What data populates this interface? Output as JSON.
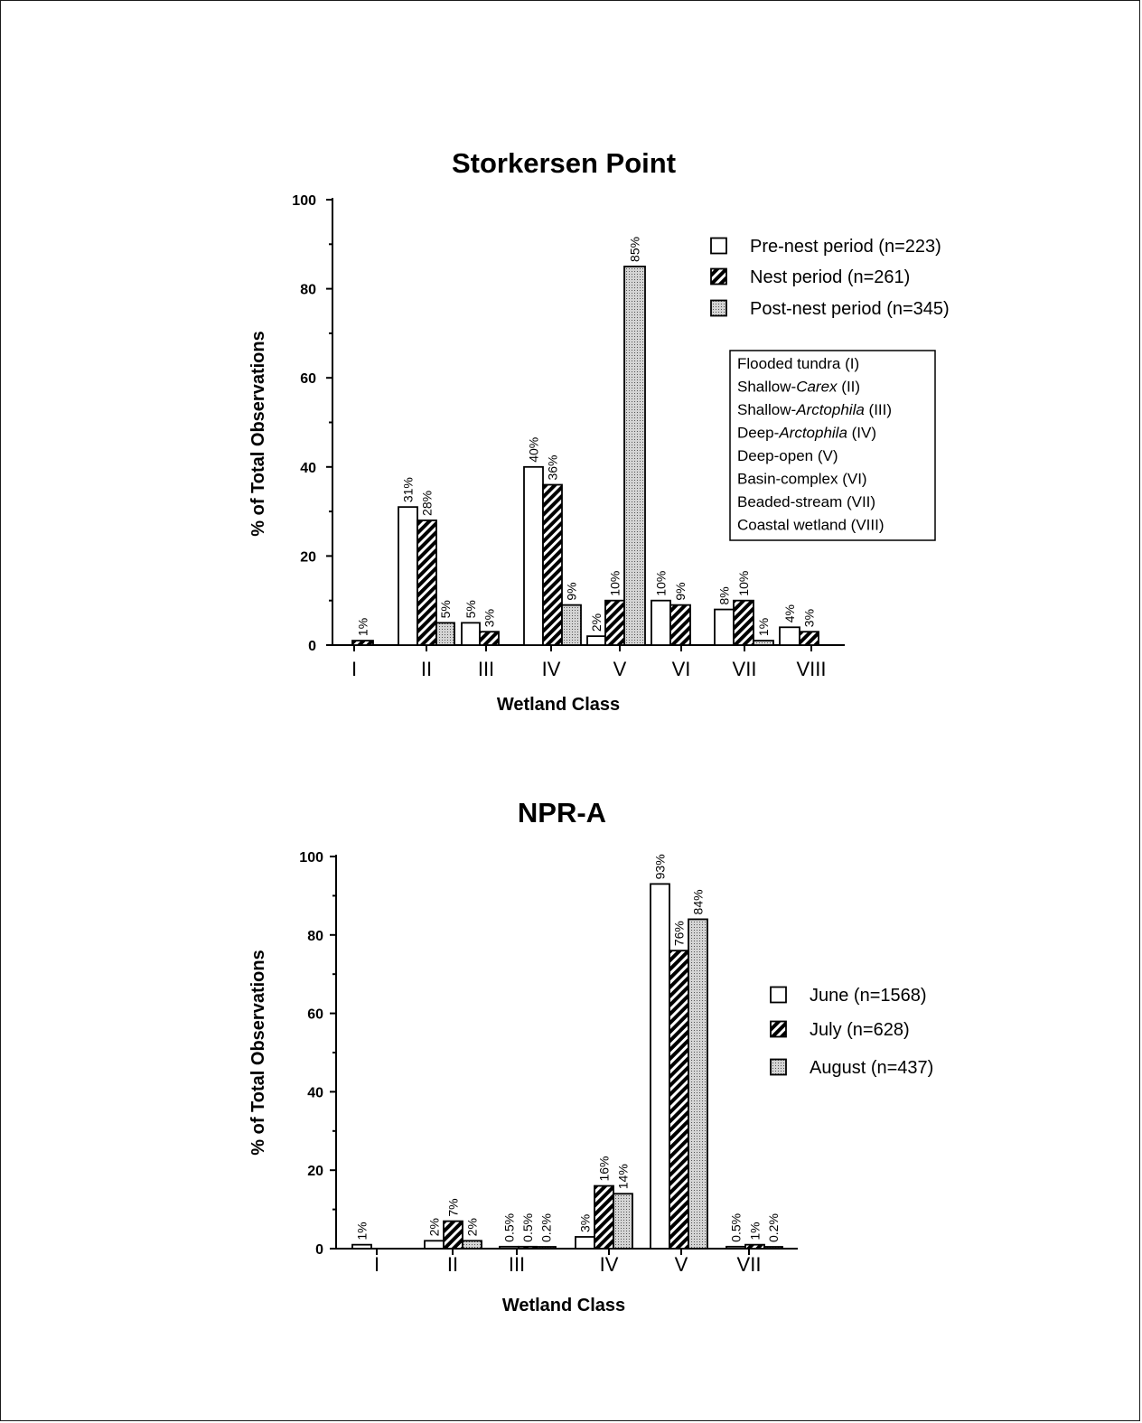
{
  "chart_data": [
    {
      "type": "bar",
      "title": "Storkersen Point",
      "xlabel": "Wetland Class",
      "ylabel": "% of Total Observations",
      "ylim": [
        0,
        100
      ],
      "yticks": [
        "0",
        "20",
        "40",
        "60",
        "80",
        "100"
      ],
      "categories": [
        "I",
        "II",
        "III",
        "IV",
        "V",
        "VI",
        "VII",
        "VIII"
      ],
      "series": [
        {
          "name": "Pre-nest period (n=223)",
          "pattern": "white",
          "values": [
            null,
            31,
            5,
            40,
            2,
            10,
            8,
            4
          ],
          "labels": [
            "",
            "31%",
            "5%",
            "40%",
            "2%",
            "10%",
            "8%",
            "4%"
          ]
        },
        {
          "name": "Nest period (n=261)",
          "pattern": "hatched",
          "values": [
            1,
            28,
            3,
            36,
            10,
            9,
            10,
            3
          ],
          "labels": [
            "1%",
            "28%",
            "3%",
            "36%",
            "10%",
            "9%",
            "10%",
            "3%"
          ]
        },
        {
          "name": "Post-nest period (n=345)",
          "pattern": "stippled",
          "values": [
            null,
            5,
            null,
            9,
            85,
            null,
            1,
            null
          ],
          "labels": [
            "",
            "5%",
            "",
            "9%",
            "85%",
            "",
            "1%",
            ""
          ]
        }
      ],
      "legend_position": "top-right",
      "key_box": [
        {
          "pre": "Flooded  tundra (I)",
          "em": "",
          "post": ""
        },
        {
          "pre": "Shallow-",
          "em": "Carex",
          "post": " (II)"
        },
        {
          "pre": "Shallow-",
          "em": "Arctophila",
          "post": "  (III)"
        },
        {
          "pre": "Deep-",
          "em": "Arctophila",
          "post": "  (IV)"
        },
        {
          "pre": "Deep-open  (V)",
          "em": "",
          "post": ""
        },
        {
          "pre": "Basin-complex (VI)",
          "em": "",
          "post": ""
        },
        {
          "pre": "Beaded-stream (VII)",
          "em": "",
          "post": ""
        },
        {
          "pre": "Coastal wetland (VIII)",
          "em": "",
          "post": ""
        }
      ]
    },
    {
      "type": "bar",
      "title": "NPR-A",
      "xlabel": "Wetland Class",
      "ylabel": "% of Total Observations",
      "ylim": [
        0,
        100
      ],
      "yticks": [
        "0",
        "20",
        "40",
        "60",
        "80",
        "100"
      ],
      "categories": [
        "I",
        "II",
        "III",
        "IV",
        "V",
        "VII"
      ],
      "series": [
        {
          "name": "June (n=1568)",
          "pattern": "white",
          "values": [
            1,
            2,
            0.5,
            3,
            93,
            0.5
          ],
          "labels": [
            "1%",
            "2%",
            "0.5%",
            "3%",
            "93%",
            "0.5%"
          ]
        },
        {
          "name": "July (n=628)",
          "pattern": "hatched",
          "values": [
            null,
            7,
            0.5,
            16,
            76,
            1
          ],
          "labels": [
            "",
            "7%",
            "0.5%",
            "16%",
            "76%",
            "1%"
          ]
        },
        {
          "name": "August (n=437)",
          "pattern": "stippled",
          "values": [
            null,
            2,
            0.2,
            14,
            84,
            0.2
          ],
          "labels": [
            "",
            "2%",
            "0.2%",
            "14%",
            "84%",
            "0.2%"
          ]
        }
      ],
      "legend_position": "right"
    }
  ]
}
